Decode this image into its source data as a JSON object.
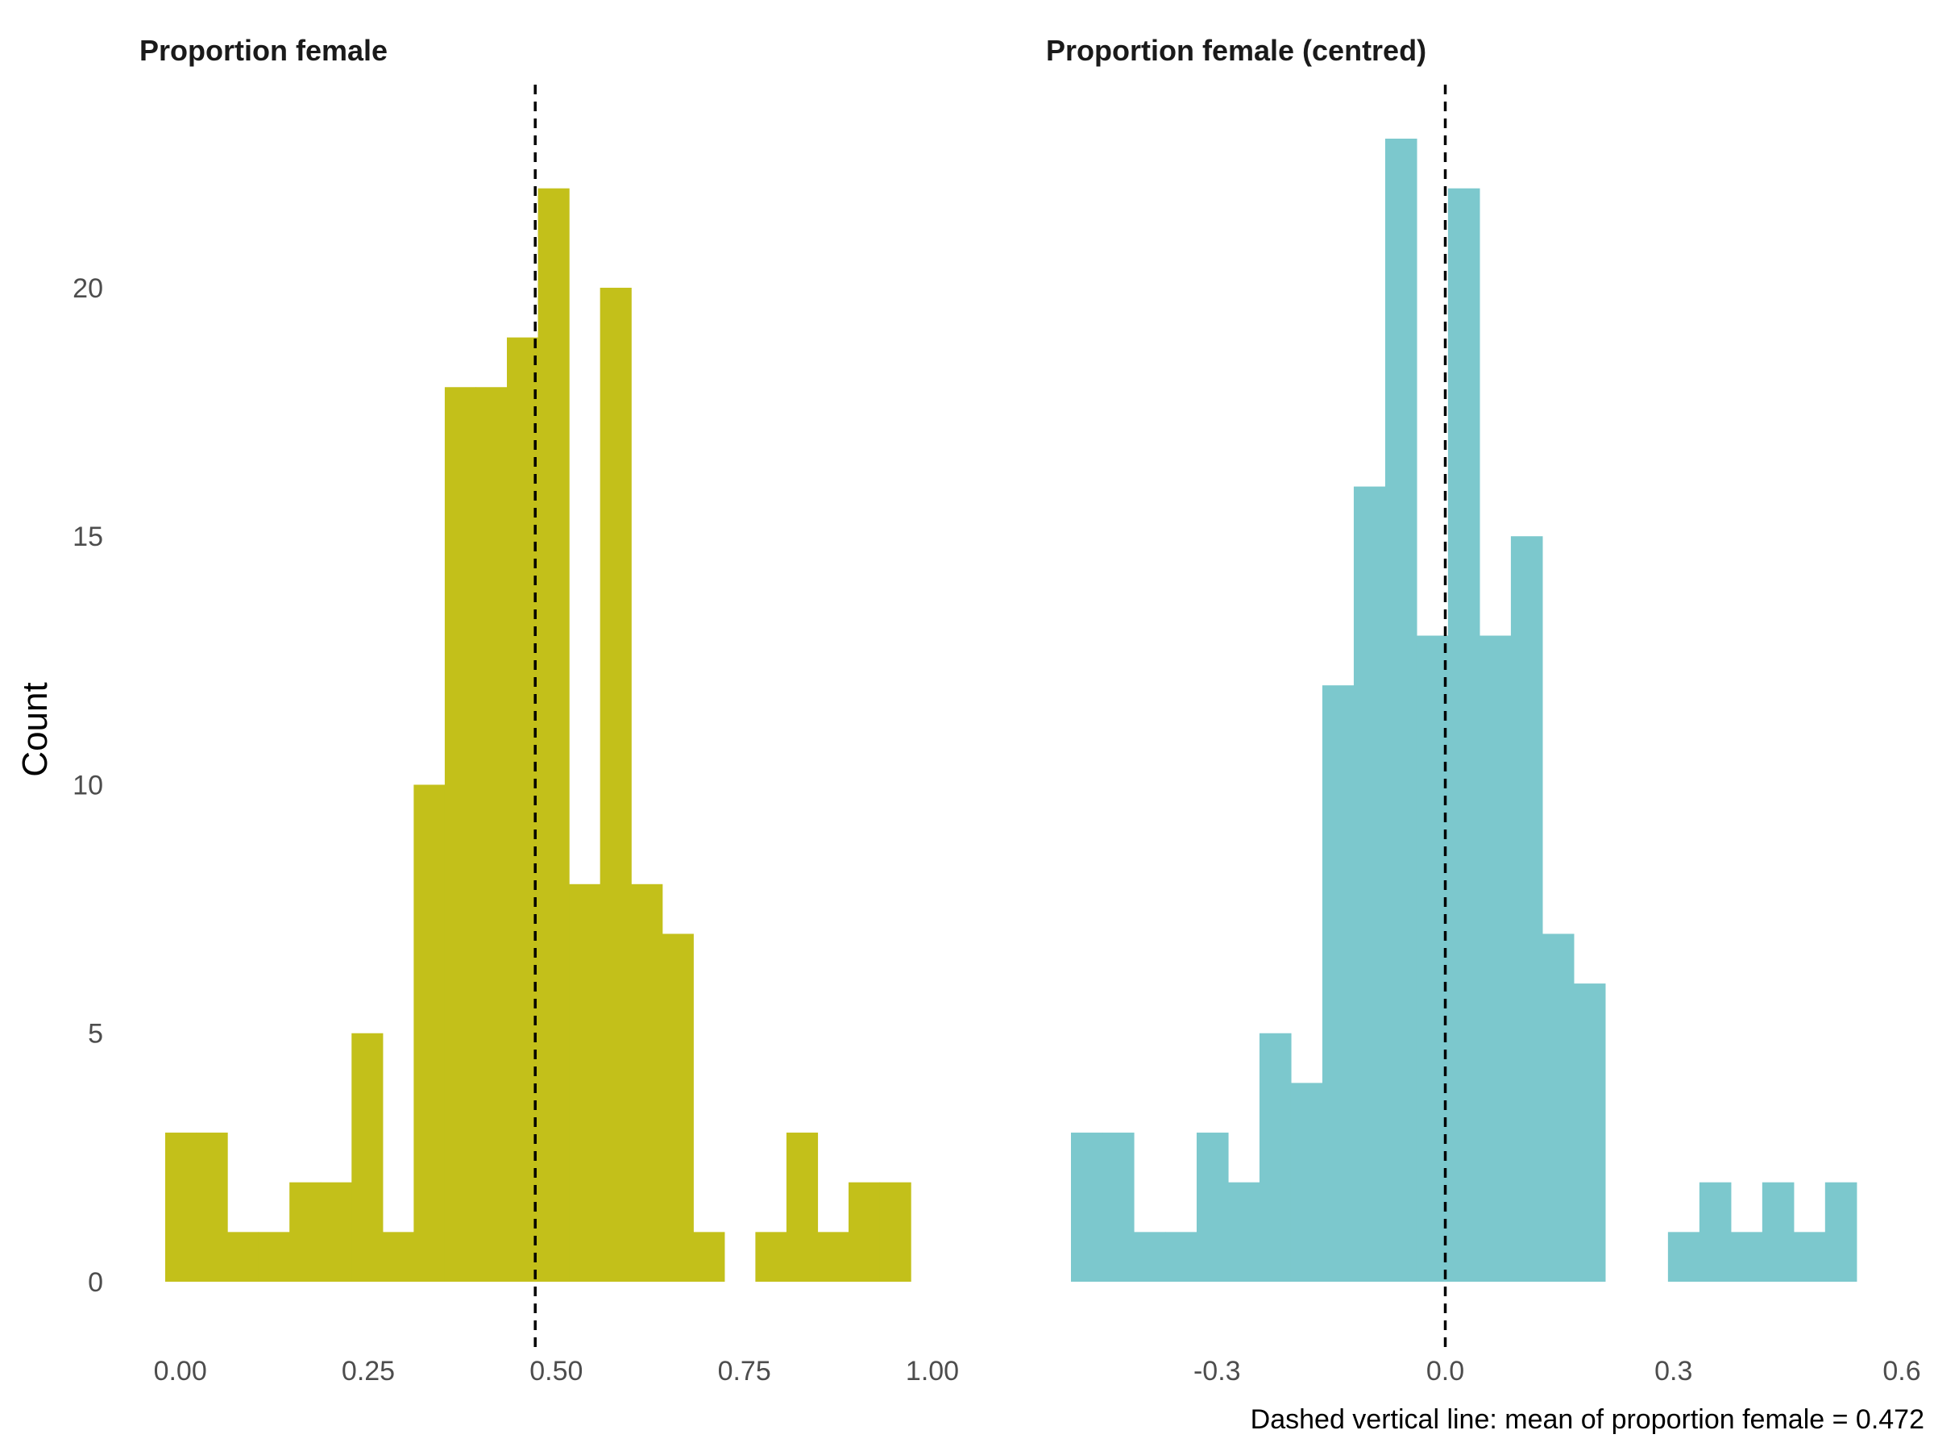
{
  "chart_data": {
    "type": "bar",
    "ylabel": "Count",
    "ylim": [
      0,
      23
    ],
    "yticks": [
      0,
      5,
      10,
      15,
      20
    ],
    "grid": false,
    "caption": "Dashed vertical line: mean of proportion female = 0.472",
    "panels": [
      {
        "title": "Proportion female",
        "color": "#C3C01A",
        "xlim": [
          -0.02,
          1.06
        ],
        "xticks": [
          {
            "value": 0.0,
            "label": "0.00"
          },
          {
            "value": 0.25,
            "label": "0.25"
          },
          {
            "value": 0.5,
            "label": "0.50"
          },
          {
            "value": 0.75,
            "label": "0.75"
          },
          {
            "value": 1.0,
            "label": "1.00"
          }
        ],
        "bin_width": 0.0413,
        "first_bin_left": -0.02,
        "counts": [
          3,
          3,
          1,
          1,
          2,
          2,
          5,
          1,
          10,
          18,
          18,
          19,
          22,
          8,
          20,
          8,
          7,
          1,
          0,
          1,
          3,
          1,
          2,
          2
        ],
        "reference_line": 0.472
      },
      {
        "title": "Proportion female (centred)",
        "color": "#7CC8CD",
        "xlim": [
          -0.492,
          0.6
        ],
        "xticks": [
          {
            "value": -0.3,
            "label": "-0.3"
          },
          {
            "value": 0.0,
            "label": "0.0"
          },
          {
            "value": 0.3,
            "label": "0.3"
          },
          {
            "value": 0.6,
            "label": "0.6"
          }
        ],
        "bin_width": 0.0413,
        "first_bin_left": -0.492,
        "counts": [
          3,
          3,
          1,
          1,
          3,
          2,
          5,
          4,
          12,
          16,
          23,
          13,
          22,
          13,
          15,
          7,
          6,
          0,
          0,
          1,
          2,
          1,
          2,
          1,
          2
        ],
        "reference_line": 0.0
      }
    ]
  }
}
